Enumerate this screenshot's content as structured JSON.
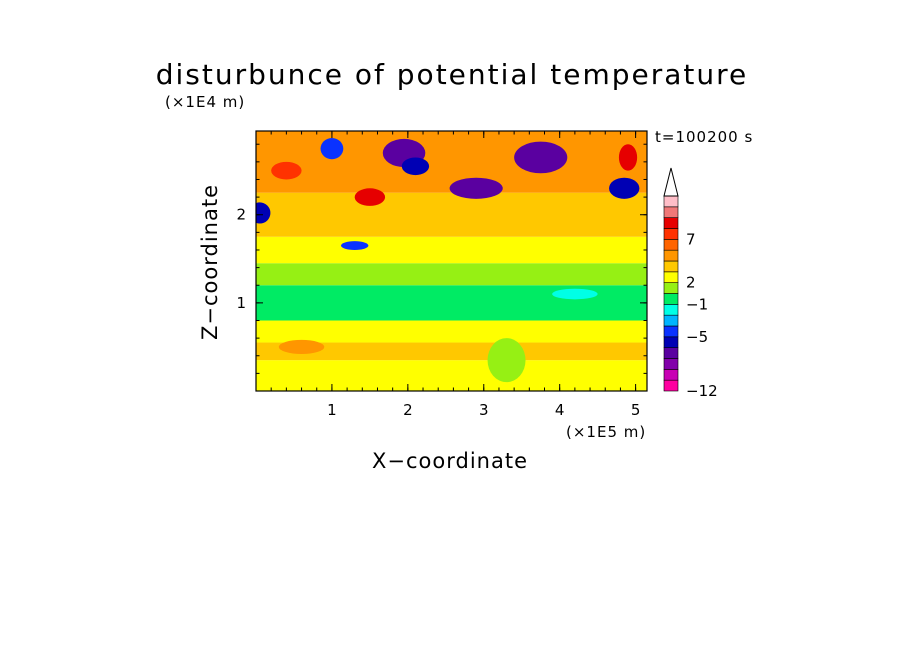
{
  "chart_data": {
    "type": "heatmap",
    "title": "disturbunce of potential temperature",
    "xlabel": "X−coordinate",
    "ylabel": "Z−coordinate",
    "x_scale_label": "(×1E5 m)",
    "y_scale_label": "(×1E4 m)",
    "time_label": "t=100200 s",
    "xlim": [
      0,
      5.15
    ],
    "ylim": [
      0,
      2.95
    ],
    "x_ticks": [
      {
        "v": 1,
        "label": "1"
      },
      {
        "v": 2,
        "label": "2"
      },
      {
        "v": 3,
        "label": "3"
      },
      {
        "v": 4,
        "label": "4"
      },
      {
        "v": 5,
        "label": "5"
      }
    ],
    "y_ticks": [
      {
        "v": 1,
        "label": "1"
      },
      {
        "v": 2,
        "label": "2"
      }
    ],
    "colorbar": {
      "colors": [
        "#ff00a0",
        "#c800b4",
        "#8200aa",
        "#5a00a0",
        "#0000b4",
        "#0a32ff",
        "#00b4ff",
        "#00ffe6",
        "#00eb64",
        "#96f014",
        "#ffff00",
        "#ffc800",
        "#ff9600",
        "#ff6400",
        "#ff3200",
        "#e60000",
        "#f07878",
        "#ffbec8"
      ],
      "labels": [
        {
          "value": -12,
          "text": "−12",
          "index": 0
        },
        {
          "value": -5,
          "text": "−5",
          "index": 5
        },
        {
          "value": -1,
          "text": "−1",
          "index": 8
        },
        {
          "value": 2,
          "text": "2",
          "index": 10
        },
        {
          "value": 7,
          "text": "7",
          "index": 14
        }
      ],
      "extend": "max"
    },
    "bands": [
      {
        "z": [
          0.0,
          0.35
        ],
        "level": 10
      },
      {
        "z": [
          0.35,
          0.55
        ],
        "level": 11
      },
      {
        "z": [
          0.55,
          0.8
        ],
        "level": 10
      },
      {
        "z": [
          0.8,
          1.2
        ],
        "level": 8
      },
      {
        "z": [
          1.2,
          1.45
        ],
        "level": 9
      },
      {
        "z": [
          1.45,
          1.75
        ],
        "level": 10
      },
      {
        "z": [
          1.75,
          2.25
        ],
        "level": 11
      },
      {
        "z": [
          2.25,
          2.95
        ],
        "level": 12
      }
    ],
    "patches": [
      {
        "x": 0.05,
        "z": 2.02,
        "rx": 0.14,
        "rz": 0.12,
        "level": 4
      },
      {
        "x": 1.3,
        "z": 1.65,
        "rx": 0.18,
        "rz": 0.05,
        "level": 5
      },
      {
        "x": 1.95,
        "z": 2.7,
        "rx": 0.28,
        "rz": 0.16,
        "level": 3
      },
      {
        "x": 2.1,
        "z": 2.55,
        "rx": 0.18,
        "rz": 0.1,
        "level": 4
      },
      {
        "x": 2.9,
        "z": 2.3,
        "rx": 0.35,
        "rz": 0.12,
        "level": 3
      },
      {
        "x": 3.75,
        "z": 2.65,
        "rx": 0.35,
        "rz": 0.18,
        "level": 3
      },
      {
        "x": 4.85,
        "z": 2.3,
        "rx": 0.2,
        "rz": 0.12,
        "level": 4
      },
      {
        "x": 1.0,
        "z": 2.75,
        "rx": 0.15,
        "rz": 0.12,
        "level": 5
      },
      {
        "x": 0.4,
        "z": 2.5,
        "rx": 0.2,
        "rz": 0.1,
        "level": 14
      },
      {
        "x": 1.5,
        "z": 2.2,
        "rx": 0.2,
        "rz": 0.1,
        "level": 15
      },
      {
        "x": 4.9,
        "z": 2.65,
        "rx": 0.12,
        "rz": 0.15,
        "level": 15
      },
      {
        "x": 0.6,
        "z": 0.5,
        "rx": 0.3,
        "rz": 0.08,
        "level": 12
      },
      {
        "x": 3.3,
        "z": 0.35,
        "rx": 0.25,
        "rz": 0.25,
        "level": 9
      },
      {
        "x": 4.2,
        "z": 1.1,
        "rx": 0.3,
        "rz": 0.06,
        "level": 7
      }
    ]
  }
}
